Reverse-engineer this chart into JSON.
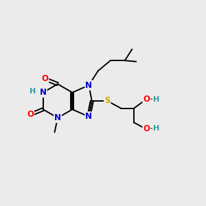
{
  "bg_color": "#ebebeb",
  "atom_colors": {
    "C": "#000000",
    "N": "#0000cc",
    "O": "#ff0000",
    "S": "#ccaa00",
    "H": "#339999"
  },
  "bond_color": "#000000",
  "lw": 1.4,
  "fs": 8.5
}
